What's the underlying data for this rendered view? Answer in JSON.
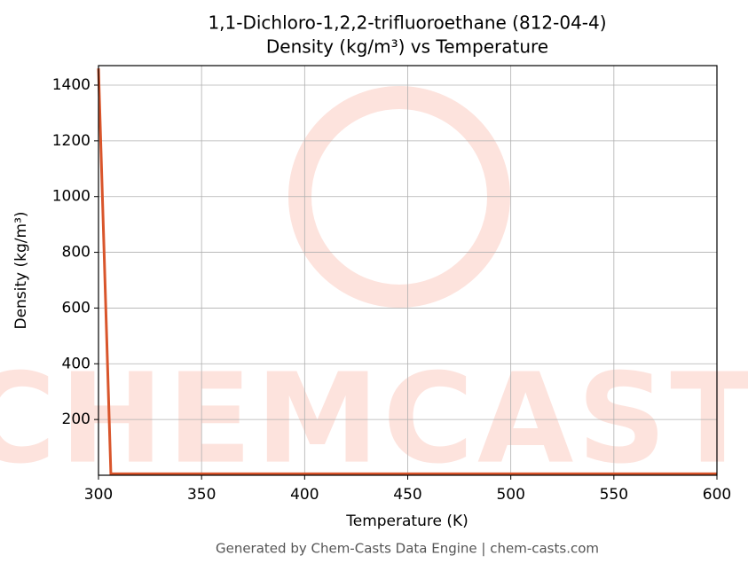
{
  "chart_data": {
    "type": "line",
    "title": "1,1-Dichloro-1,2,2-trifluoroethane (812-04-4)",
    "subtitle": "Density (kg/m³) vs Temperature",
    "x_label": "Temperature (K)",
    "y_label": "Density (kg/m³)",
    "watermark": "CHEMCASTS",
    "footer": "Generated by Chem-Casts Data Engine | chem-casts.com",
    "series": [
      {
        "name": "Density",
        "color": "#d9552b",
        "x": [
          300,
          306,
          600
        ],
        "values": [
          1460,
          5,
          5
        ]
      }
    ],
    "xlim": [
      300,
      600
    ],
    "xticks": [
      300,
      350,
      400,
      450,
      500,
      550,
      600
    ],
    "ylim": [
      0,
      1470
    ],
    "yticks": [
      200,
      400,
      600,
      800,
      1000,
      1200,
      1400
    ],
    "grid": true
  }
}
